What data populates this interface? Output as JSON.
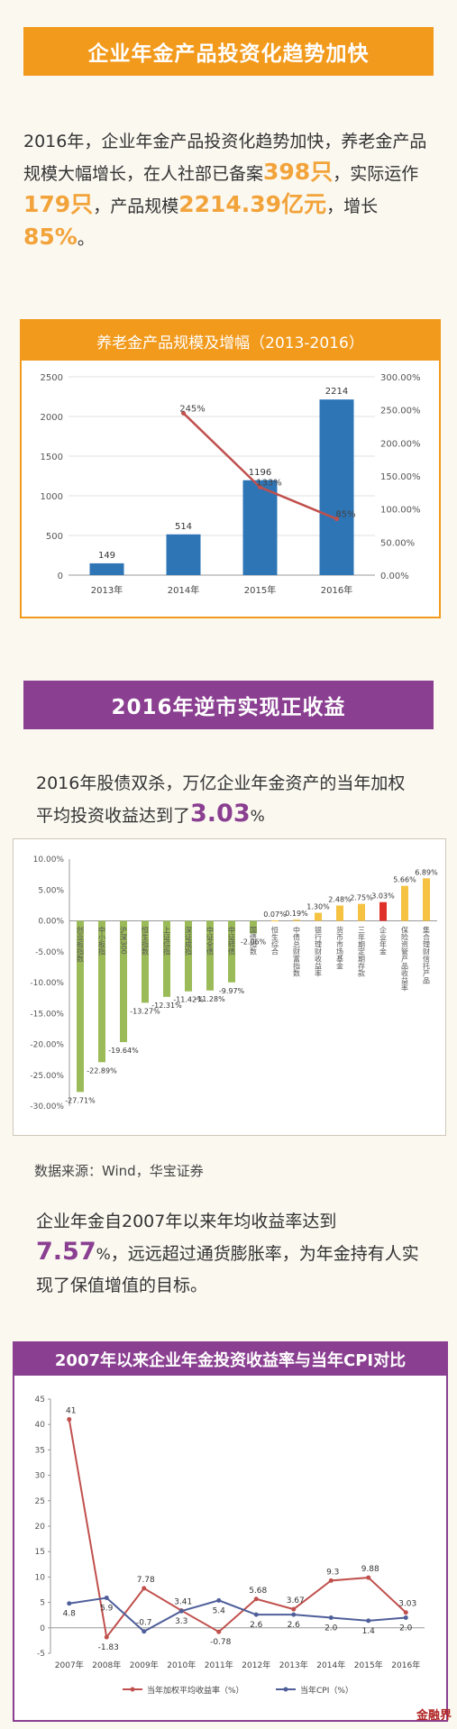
{
  "section1": {
    "title": "企业年金产品投资化趋势加快",
    "para": {
      "t1": "2016年，企业年金产品投资化趋势加快，养老金产品规模大幅增长，在人社部已备案",
      "v1": "398只",
      "t2": "，实际运作",
      "v2": "179只",
      "t3": "，产品规模",
      "v3": "2214.39亿元",
      "t4": "，增长",
      "v4": "85%",
      "t5": "。"
    }
  },
  "chart1": {
    "title": "养老金产品规模及增幅（2013-2016）",
    "chart_data": {
      "type": "bar",
      "categories": [
        "2013年",
        "2014年",
        "2015年",
        "2016年"
      ],
      "series": [
        {
          "values": [
            149,
            514,
            1196,
            2214
          ],
          "color": "#2e75b6"
        },
        {
          "values": [
            null,
            245,
            133,
            85
          ],
          "color": "#c0504d",
          "axis": "right",
          "labels": [
            "",
            "245%",
            "133%",
            "85%"
          ]
        }
      ],
      "ylim": [
        0,
        2500
      ],
      "yticks": [
        "0",
        "500",
        "1000",
        "1500",
        "2000",
        "2500"
      ],
      "y2lim": [
        0,
        300
      ],
      "y2ticks": [
        "0.00%",
        "50.00%",
        "100.00%",
        "150.00%",
        "200.00%",
        "250.00%",
        "300.00%"
      ],
      "grid": true
    }
  },
  "section2": {
    "title": "2016年逆市实现正收益",
    "para": {
      "t1": "2016年股债双杀，万亿企业年金资产的当年加权平均投资收益达到了",
      "v1": "3.03",
      "unit": "%"
    }
  },
  "chart2": {
    "chart_data": {
      "type": "bar",
      "categories": [
        "创业板指数",
        "中小板指",
        "沪深300",
        "恒生指数",
        "上证综指",
        "深证成指",
        "中证全债",
        "中证转债",
        "国债指数",
        "恒生综合",
        "中债总财富指数",
        "银行理财收益率",
        "货币市场基金",
        "三年期定期存款",
        "企业年金",
        "保险资管产品收益率",
        "集合理财信托产品"
      ],
      "values": [
        -27.71,
        -22.89,
        -19.64,
        -13.27,
        -12.31,
        -11.42,
        -11.28,
        -9.97,
        -2.06,
        0.07,
        0.19,
        1.3,
        2.48,
        2.75,
        3.03,
        5.66,
        6.89
      ],
      "labels": [
        "-27.71%",
        "-22.89%",
        "-19.64%",
        "-13.27%",
        "-12.31%",
        "-11.42%",
        "-11.28%",
        "-9.97%",
        "-2.06%",
        "0.07%",
        "0.19%",
        "1.30%",
        "2.48%",
        "2.75%",
        "3.03%",
        "5.66%",
        "6.89%"
      ],
      "highlight_index": 14,
      "colors": {
        "negative": "#9bbb59",
        "positive": "#f5c242",
        "highlight": "#e0302a"
      },
      "ylim": [
        -30,
        10
      ],
      "yticks": [
        "-30.00%",
        "-25.00%",
        "-20.00%",
        "-15.00%",
        "-10.00%",
        "-5.00%",
        "0.00%",
        "5.00%",
        "10.00%"
      ],
      "grid": false
    }
  },
  "source_note": "数据来源：Wind，华宝证券",
  "section3": {
    "para": {
      "t1": "企业年金自2007年以来年均收益率达到",
      "v1": "7.57",
      "unit": "%",
      "t2": "，远远超过通货膨胀率，为年金持有人实现了保值增值的目标。"
    }
  },
  "chart3": {
    "title": "2007年以来企业年金投资收益率与当年CPI对比",
    "chart_data": {
      "type": "line",
      "x": [
        "2007年",
        "2008年",
        "2009年",
        "2010年",
        "2011年",
        "2012年",
        "2013年",
        "2014年",
        "2015年",
        "2016年"
      ],
      "series": [
        {
          "name": "当年加权平均收益率（%）",
          "values": [
            41,
            -1.83,
            7.78,
            3.41,
            -0.78,
            5.68,
            3.67,
            9.3,
            9.88,
            3.03
          ],
          "labels": [
            "41",
            "-1.83",
            "7.78",
            "3.41",
            "-0.78",
            "5.68",
            "3.67",
            "9.3",
            "9.88",
            "3.03"
          ],
          "color": "#c0504d"
        },
        {
          "name": "当年CPI（%）",
          "values": [
            4.8,
            5.9,
            -0.7,
            3.3,
            5.4,
            2.6,
            2.6,
            2.0,
            1.4,
            2.0
          ],
          "labels": [
            "4.8",
            "5.9",
            "-0.7",
            "3.3",
            "5.4",
            "2.6",
            "2.6",
            "2.0",
            "1.4",
            "2.0"
          ],
          "color": "#4f5f9a"
        }
      ],
      "ylim": [
        -5,
        45
      ],
      "yticks": [
        "-5",
        "0",
        "5",
        "10",
        "15",
        "20",
        "25",
        "30",
        "35",
        "40",
        "45"
      ],
      "legend": "bottom"
    }
  },
  "watermark": "金融界"
}
